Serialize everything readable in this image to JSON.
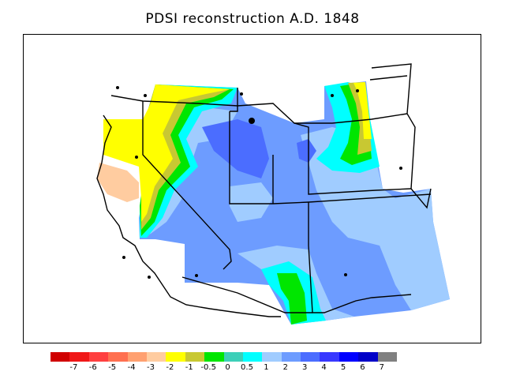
{
  "title": "PDSI reconstruction A.D. 1848",
  "colorbar": {
    "colors": [
      "#d00000",
      "#f01818",
      "#ff4040",
      "#ff7050",
      "#ffa070",
      "#ffcca0",
      "#ffff00",
      "#c8c832",
      "#00e600",
      "#3ccfb8",
      "#00ffff",
      "#a0ccff",
      "#6d9cff",
      "#4b6dff",
      "#3838ff",
      "#0000ff",
      "#0000c8",
      "#808080"
    ],
    "ticks": [
      "-7",
      "-6",
      "-5",
      "-4",
      "-3",
      "-2",
      "-1",
      "-0.5",
      "0",
      "0.5",
      "1",
      "2",
      "3",
      "4",
      "5",
      "6",
      "7"
    ]
  },
  "map": {
    "region": "Western United States",
    "field_colors": {
      "very_dry": "#ffff00",
      "dry": "#ffcca0",
      "near_normal": "#00e600",
      "moist": "#a0ccff",
      "wet": "#6d9cff",
      "very_wet": "#4b6dff"
    }
  }
}
